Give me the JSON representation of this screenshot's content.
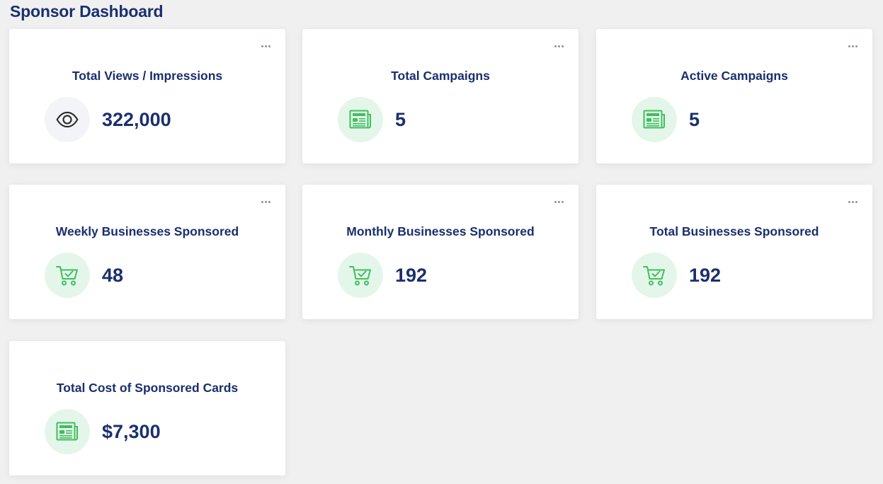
{
  "page": {
    "title": "Sponsor Dashboard"
  },
  "colors": {
    "title": "#1a2f6e",
    "accent_green": "#3fbf5f",
    "icon_bg_green": "#e4f6e9",
    "icon_bg_grey": "#f3f4f8",
    "background": "#f0f0f1"
  },
  "cards": [
    {
      "title": "Total Views / Impressions",
      "value": "322,000",
      "icon": "eye-icon",
      "has_menu": true
    },
    {
      "title": "Total Campaigns",
      "value": "5",
      "icon": "newspaper-icon",
      "has_menu": true
    },
    {
      "title": "Active Campaigns",
      "value": "5",
      "icon": "newspaper-icon",
      "has_menu": true
    },
    {
      "title": "Weekly Businesses Sponsored",
      "value": "48",
      "icon": "cart-check-icon",
      "has_menu": true
    },
    {
      "title": "Monthly Businesses Sponsored",
      "value": "192",
      "icon": "cart-check-icon",
      "has_menu": true
    },
    {
      "title": "Total Businesses Sponsored",
      "value": "192",
      "icon": "cart-check-icon",
      "has_menu": true
    },
    {
      "title": "Total Cost of Sponsored Cards",
      "value": "$7,300",
      "icon": "newspaper-icon",
      "has_menu": false
    }
  ]
}
